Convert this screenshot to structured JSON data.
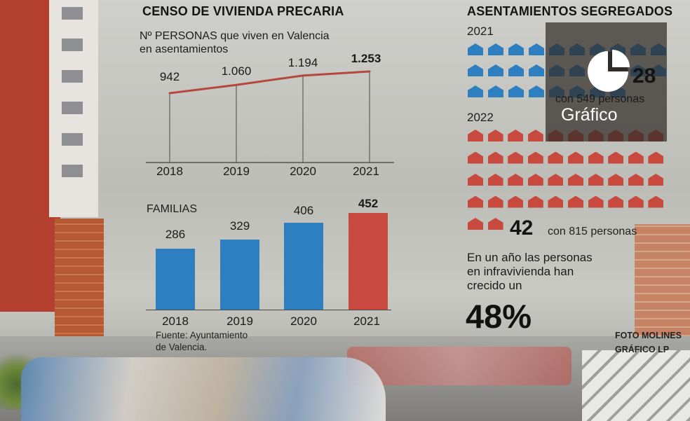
{
  "left_title": "CENSO DE VIVIENDA PRECARIA",
  "right_title": "ASENTAMIENTOS SEGREGADOS",
  "source": [
    "Fuente: Ayuntamiento",
    "de Valencia."
  ],
  "credit": [
    "FOTO MOLINES",
    "GRÁFICO LP"
  ],
  "colors": {
    "line": "#b4483c",
    "bar_blue": "#2e7fbf",
    "bar_red": "#c8493e",
    "house_blue": "#2e7fbf",
    "house_red": "#c8493e"
  },
  "chart_data": [
    {
      "type": "line",
      "title": "Nº PERSONAS que viven en Valencia en asentamientos",
      "title_lines": [
        "Nº PERSONAS que viven en Valencia",
        "en asentamientos"
      ],
      "x": [
        "2018",
        "2019",
        "2020",
        "2021"
      ],
      "y": [
        942,
        1060,
        1194,
        1253
      ],
      "labels": [
        "942",
        "1.060",
        "1.194",
        "1.253"
      ],
      "ylim": [
        0,
        1300
      ],
      "grid": "vertical lines"
    },
    {
      "type": "bar",
      "title": "FAMILIAS",
      "categories": [
        "2018",
        "2019",
        "2020",
        "2021"
      ],
      "values": [
        286,
        329,
        406,
        452
      ],
      "labels": [
        "286",
        "329",
        "406",
        "452"
      ],
      "highlight_last": true,
      "ylim": [
        0,
        460
      ]
    }
  ],
  "settlements": {
    "y2021": {
      "year": "2021",
      "count": 28,
      "count_label": "28",
      "people_label": "con 549 personas",
      "icon": "house-icon"
    },
    "y2022": {
      "year": "2022",
      "count": 42,
      "count_label": "42",
      "people_label": "con 815 personas",
      "icon": "house-icon"
    },
    "overlay_label": "Gráfico",
    "overlay_icon": "pie-chart-icon"
  },
  "note": [
    "En un año las personas",
    "en infravivienda han",
    "crecido un"
  ],
  "growth_pct": "48%"
}
